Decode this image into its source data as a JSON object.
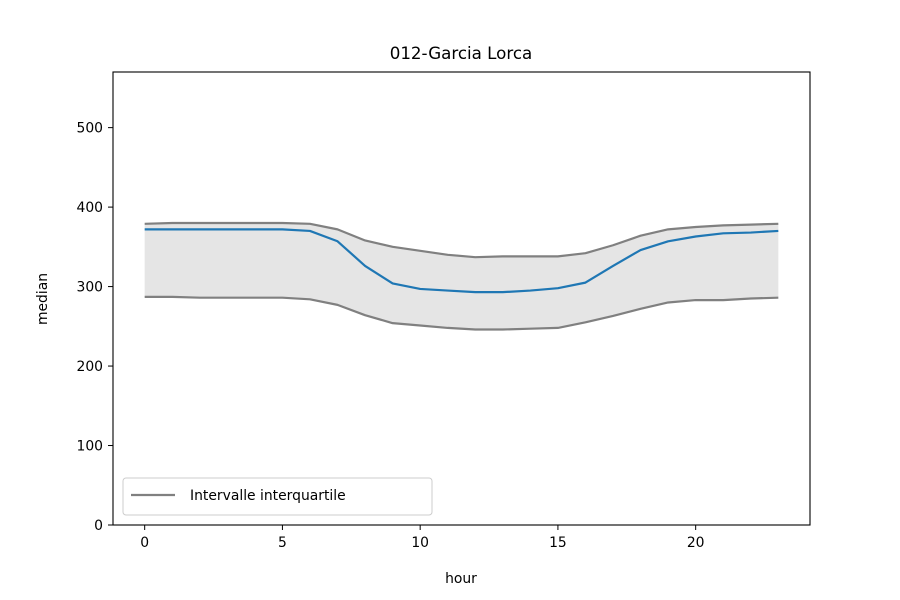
{
  "chart_data": {
    "type": "line",
    "title": "012-Garcia Lorca",
    "xlabel": "hour",
    "ylabel": "median",
    "xlim": [
      -1.15,
      24.15
    ],
    "ylim": [
      0,
      570
    ],
    "x_ticks": [
      0,
      5,
      10,
      15,
      20
    ],
    "y_ticks": [
      0,
      100,
      200,
      300,
      400,
      500
    ],
    "x": [
      0,
      1,
      2,
      3,
      4,
      5,
      6,
      7,
      8,
      9,
      10,
      11,
      12,
      13,
      14,
      15,
      16,
      17,
      18,
      19,
      20,
      21,
      22,
      23
    ],
    "series": [
      {
        "role": "median",
        "color": "#1f77b4",
        "values": [
          372,
          372,
          372,
          372,
          372,
          372,
          370,
          357,
          326,
          304,
          297,
          295,
          293,
          293,
          295,
          298,
          305,
          326,
          346,
          357,
          363,
          367,
          368,
          370
        ]
      },
      {
        "role": "q3",
        "color": "#808080",
        "values": [
          379,
          380,
          380,
          380,
          380,
          380,
          379,
          372,
          358,
          350,
          345,
          340,
          337,
          338,
          338,
          338,
          342,
          352,
          364,
          372,
          375,
          377,
          378,
          379
        ]
      },
      {
        "role": "q1",
        "color": "#808080",
        "values": [
          287,
          287,
          286,
          286,
          286,
          286,
          284,
          277,
          264,
          254,
          251,
          248,
          246,
          246,
          247,
          248,
          255,
          263,
          272,
          280,
          283,
          283,
          285,
          286
        ]
      }
    ],
    "band": {
      "fill": "#d3d3d3",
      "opacity": 0.6
    },
    "legend": {
      "placement": "lower-left",
      "entries": [
        {
          "label": "Intervalle interquartile",
          "color": "#808080"
        }
      ]
    },
    "grid": false
  }
}
